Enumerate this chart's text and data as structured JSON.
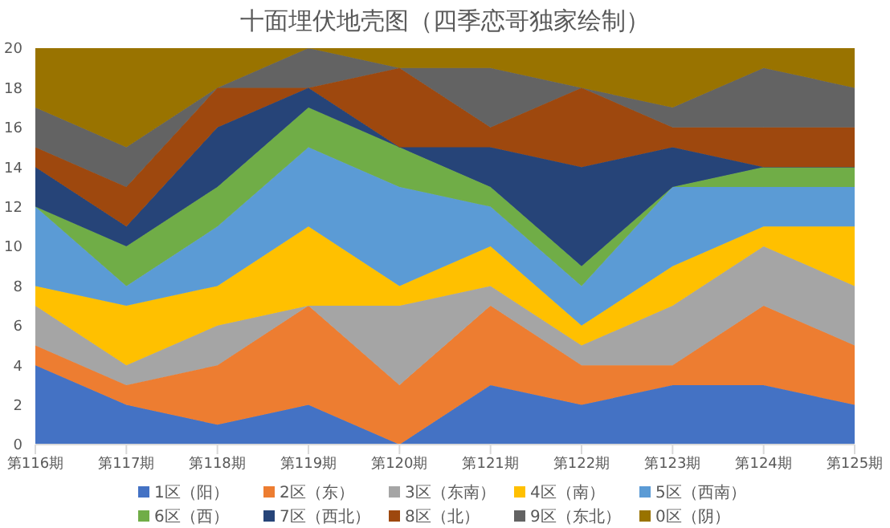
{
  "chart_data": {
    "type": "area",
    "stacked": true,
    "title": "十面埋伏地壳图（四季恋哥独家绘制）",
    "categories": [
      "第116期",
      "第117期",
      "第118期",
      "第119期",
      "第120期",
      "第121期",
      "第122期",
      "第123期",
      "第124期",
      "第125期"
    ],
    "ylim": [
      0,
      20
    ],
    "yticks": [
      0,
      2,
      4,
      6,
      8,
      10,
      12,
      14,
      16,
      18,
      20
    ],
    "grid": false,
    "legend": "bottom",
    "series": [
      {
        "name": "1区（阳）",
        "color": "#4472c4",
        "values": [
          4,
          2,
          1,
          2,
          0,
          3,
          2,
          3,
          3,
          2
        ]
      },
      {
        "name": "2区（东）",
        "color": "#ed7d31",
        "values": [
          1,
          1,
          3,
          5,
          3,
          4,
          2,
          1,
          4,
          3
        ]
      },
      {
        "name": "3区（东南）",
        "color": "#a5a5a5",
        "values": [
          2,
          1,
          2,
          0,
          4,
          1,
          1,
          3,
          3,
          3
        ]
      },
      {
        "name": "4区（南）",
        "color": "#ffc000",
        "values": [
          1,
          3,
          2,
          4,
          1,
          2,
          1,
          2,
          1,
          3
        ]
      },
      {
        "name": "5区（西南）",
        "color": "#5b9bd5",
        "values": [
          4,
          1,
          3,
          4,
          5,
          2,
          2,
          4,
          2,
          2
        ]
      },
      {
        "name": "6区（西）",
        "color": "#70ad47",
        "values": [
          0,
          2,
          2,
          2,
          2,
          1,
          1,
          0,
          1,
          1
        ]
      },
      {
        "name": "7区（西北）",
        "color": "#264478",
        "values": [
          2,
          1,
          3,
          1,
          0,
          2,
          5,
          2,
          0,
          0
        ]
      },
      {
        "name": "8区（北）",
        "color": "#9e480e",
        "values": [
          1,
          2,
          2,
          0,
          4,
          1,
          4,
          1,
          2,
          2
        ]
      },
      {
        "name": "9区（东北）",
        "color": "#636363",
        "values": [
          2,
          2,
          0,
          2,
          0,
          3,
          0,
          1,
          3,
          2
        ]
      },
      {
        "name": "0区（阴）",
        "color": "#997300",
        "values": [
          3,
          5,
          2,
          0,
          1,
          1,
          2,
          3,
          1,
          2
        ]
      }
    ]
  }
}
